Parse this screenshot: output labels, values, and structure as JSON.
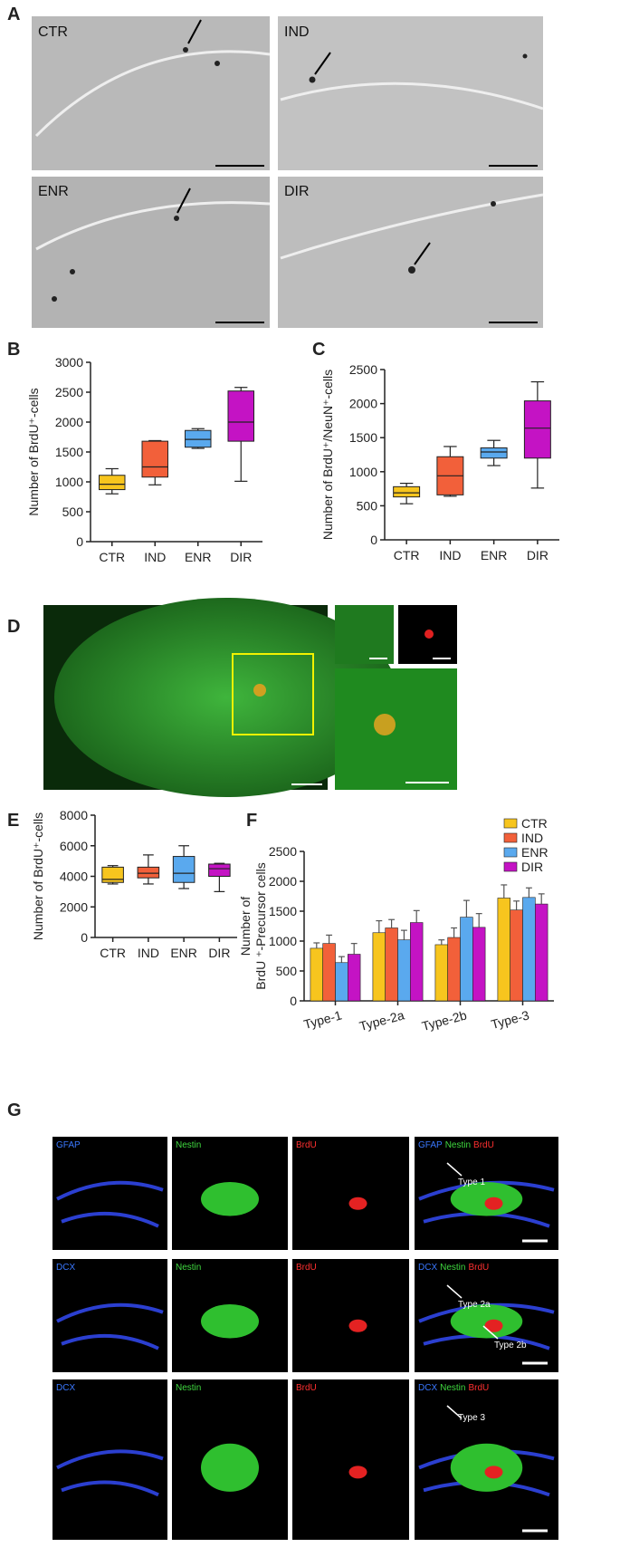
{
  "panel_labels": [
    "A",
    "B",
    "C",
    "D",
    "E",
    "F",
    "G"
  ],
  "panel_a": {
    "images": [
      "CTR",
      "IND",
      "ENR",
      "DIR"
    ]
  },
  "panel_g": {
    "rows": [
      {
        "channels": [
          "GFAP",
          "Nestin",
          "BrdU"
        ],
        "annotations": [
          "Type 1"
        ]
      },
      {
        "channels": [
          "DCX",
          "Nestin",
          "BrdU"
        ],
        "annotations": [
          "Type 2a",
          "Type 2b"
        ]
      },
      {
        "channels": [
          "DCX",
          "Nestin",
          "BrdU"
        ],
        "annotations": [
          "Type 3"
        ]
      }
    ]
  },
  "chart_data": [
    {
      "type": "box",
      "ylabel": [
        "Number of BrdU⁺-cells"
      ],
      "categories": [
        "CTR",
        "IND",
        "ENR",
        "DIR"
      ],
      "colors": [
        "#f7c51e",
        "#f2603a",
        "#5aa9ee",
        "#c413c4"
      ],
      "min": [
        800,
        950,
        1560,
        1010
      ],
      "q1": [
        870,
        1080,
        1580,
        1680
      ],
      "median": [
        960,
        1250,
        1710,
        2000
      ],
      "q3": [
        1110,
        1680,
        1860,
        2520
      ],
      "max": [
        1220,
        1690,
        1890,
        2580
      ],
      "ylim": [
        0,
        3000
      ],
      "yticks": [
        0,
        500,
        1000,
        1500,
        2000,
        2500,
        3000
      ]
    },
    {
      "type": "box",
      "ylabel": [
        "Number of BrdU⁺/NeuN⁺-cells"
      ],
      "categories": [
        "CTR",
        "IND",
        "ENR",
        "DIR"
      ],
      "colors": [
        "#f7c51e",
        "#f2603a",
        "#5aa9ee",
        "#c413c4"
      ],
      "min": [
        530,
        640,
        1090,
        760
      ],
      "q1": [
        630,
        660,
        1200,
        1200
      ],
      "median": [
        690,
        940,
        1290,
        1640
      ],
      "q3": [
        780,
        1220,
        1350,
        2040
      ],
      "max": [
        830,
        1370,
        1460,
        2320
      ],
      "ylim": [
        0,
        2500
      ],
      "yticks": [
        0,
        500,
        1000,
        1500,
        2000,
        2500
      ]
    },
    {
      "type": "box",
      "ylabel": [
        "Number of BrdU⁺-cells"
      ],
      "categories": [
        "CTR",
        "IND",
        "ENR",
        "DIR"
      ],
      "colors": [
        "#f7c51e",
        "#f2603a",
        "#5aa9ee",
        "#c413c4"
      ],
      "min": [
        3500,
        3500,
        3200,
        3000
      ],
      "q1": [
        3600,
        3900,
        3600,
        4000
      ],
      "median": [
        3800,
        4200,
        4200,
        4500
      ],
      "q3": [
        4600,
        4600,
        5300,
        4800
      ],
      "max": [
        4700,
        5400,
        6000,
        4850
      ],
      "ylim": [
        0,
        8000
      ],
      "yticks": [
        0,
        2000,
        4000,
        6000,
        8000
      ]
    },
    {
      "type": "bar",
      "ylabel": [
        "Number of",
        "BrdU ⁺-Precursor cells"
      ],
      "categories": [
        "Type-1",
        "Type-2a",
        "Type-2b",
        "Type-3"
      ],
      "series": [
        {
          "name": "CTR",
          "color": "#f7c51e",
          "values": [
            880,
            1140,
            940,
            1720
          ],
          "errors": [
            90,
            200,
            80,
            220
          ]
        },
        {
          "name": "IND",
          "color": "#f2603a",
          "values": [
            960,
            1220,
            1060,
            1520
          ],
          "errors": [
            140,
            140,
            160,
            150
          ]
        },
        {
          "name": "ENR",
          "color": "#5aa9ee",
          "values": [
            640,
            1020,
            1400,
            1730
          ],
          "errors": [
            100,
            160,
            280,
            160
          ]
        },
        {
          "name": "DIR",
          "color": "#c413c4",
          "values": [
            780,
            1310,
            1230,
            1620
          ],
          "errors": [
            180,
            200,
            230,
            170
          ]
        }
      ],
      "ylim": [
        0,
        2500
      ],
      "yticks": [
        0,
        500,
        1000,
        1500,
        2000,
        2500
      ],
      "legend": "top-right"
    }
  ]
}
